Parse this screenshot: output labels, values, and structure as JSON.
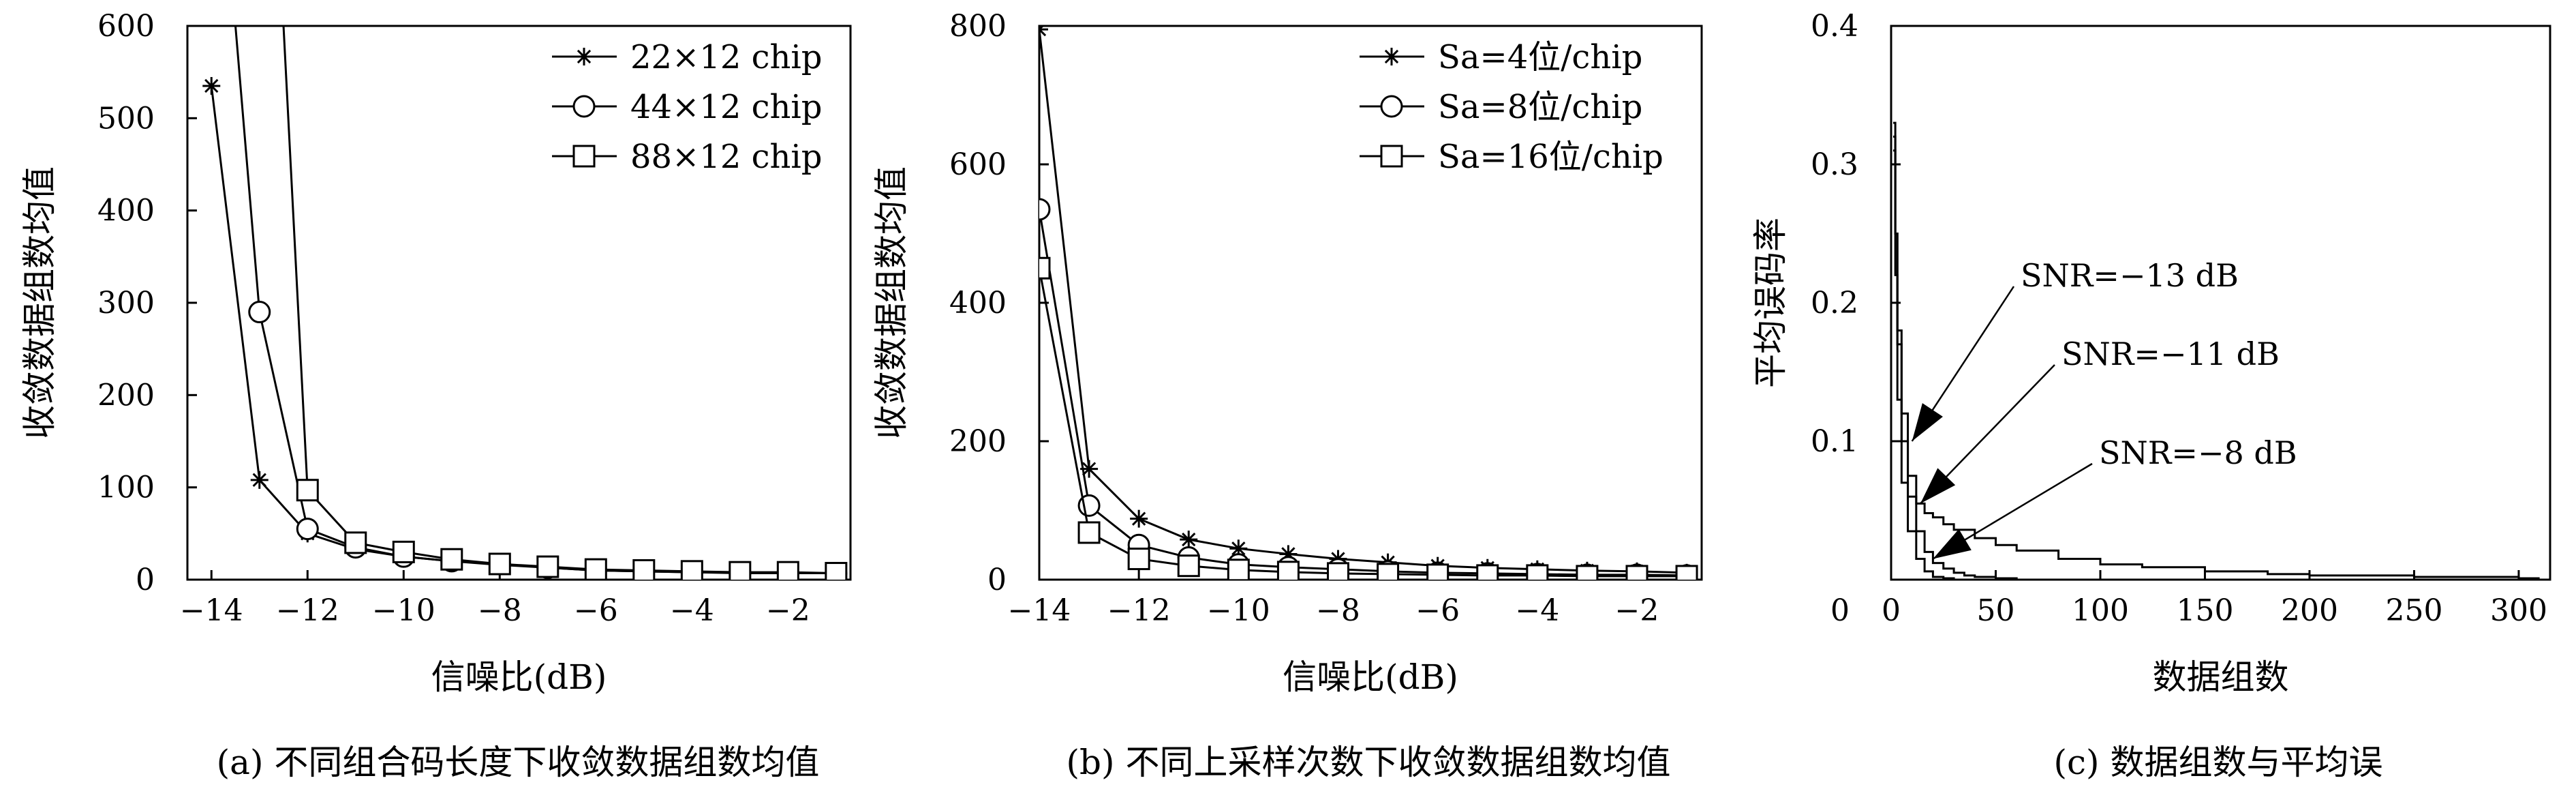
{
  "charts": [
    {
      "id": "a",
      "type": "line",
      "caption": "(a) 不同组合码长度下收敛数据组数均值",
      "xlabel": "信噪比(dB)",
      "ylabel": "收敛数据组数均值",
      "xlim": [
        -14.5,
        -0.7
      ],
      "ylim": [
        0,
        600
      ],
      "xticks": [
        -14,
        -12,
        -10,
        -8,
        -6,
        -4,
        -2
      ],
      "xtick_labels": [
        "−14",
        "−12",
        "−10",
        "−8",
        "−6",
        "−4",
        "−2"
      ],
      "yticks": [
        0,
        100,
        200,
        300,
        400,
        500,
        600
      ],
      "ytick_labels": [
        "0",
        "100",
        "200",
        "300",
        "400",
        "500",
        "600"
      ],
      "legend_position": "top-right",
      "series": [
        {
          "name": "22×12 chip",
          "marker": "star",
          "x": [
            -14,
            -13,
            -12,
            -11,
            -10,
            -9,
            -8,
            -7,
            -6,
            -5,
            -4,
            -3,
            -2,
            -1
          ],
          "y": [
            535,
            108,
            50,
            33,
            25,
            20,
            16,
            13,
            10,
            9,
            8,
            8,
            7,
            7
          ]
        },
        {
          "name": "44×12 chip",
          "marker": "circle",
          "x": [
            -13.5,
            -13,
            -12,
            -11,
            -10,
            -9,
            -8,
            -7,
            -6,
            -5,
            -4,
            -3,
            -2,
            -1
          ],
          "y": [
            600,
            290,
            55,
            35,
            25,
            20,
            17,
            13,
            10,
            9,
            8,
            7,
            7,
            7
          ]
        },
        {
          "name": "88×12 chip",
          "marker": "square",
          "x": [
            -12.5,
            -12,
            -11,
            -10,
            -9,
            -8,
            -7,
            -6,
            -5,
            -4,
            -3,
            -2,
            -1
          ],
          "y": [
            600,
            97,
            40,
            30,
            22,
            17,
            14,
            11,
            10,
            9,
            8,
            8,
            7
          ]
        }
      ]
    },
    {
      "id": "b",
      "type": "line",
      "caption": "(b) 不同上采样次数下收敛数据组数均值",
      "xlabel": "信噪比(dB)",
      "ylabel": "收敛数据组数均值",
      "xlim": [
        -14,
        -0.7
      ],
      "ylim": [
        0,
        800
      ],
      "xticks": [
        -14,
        -12,
        -10,
        -8,
        -6,
        -4,
        -2
      ],
      "xtick_labels": [
        "−14",
        "−12",
        "−10",
        "−8",
        "−6",
        "−4",
        "−2"
      ],
      "yticks": [
        0,
        200,
        400,
        600,
        800
      ],
      "ytick_labels": [
        "0",
        "200",
        "400",
        "600",
        "800"
      ],
      "legend_position": "top-right",
      "series": [
        {
          "name": "Sa=4位/chip",
          "marker": "star",
          "x": [
            -14,
            -13,
            -12,
            -11,
            -10,
            -9,
            -8,
            -7,
            -6,
            -5,
            -4,
            -3,
            -2,
            -1
          ],
          "y": [
            795,
            160,
            88,
            58,
            45,
            37,
            30,
            25,
            20,
            17,
            15,
            13,
            12,
            10
          ]
        },
        {
          "name": "Sa=8位/chip",
          "marker": "circle",
          "x": [
            -14,
            -13,
            -12,
            -11,
            -10,
            -9,
            -8,
            -7,
            -6,
            -5,
            -4,
            -3,
            -2,
            -1
          ],
          "y": [
            535,
            107,
            50,
            32,
            22,
            18,
            15,
            12,
            10,
            9,
            8,
            7,
            7,
            6
          ]
        },
        {
          "name": "Sa=16位/chip",
          "marker": "square",
          "x": [
            -14,
            -13,
            -12,
            -11,
            -10,
            -9,
            -8,
            -7,
            -6,
            -5,
            -4,
            -3,
            -2,
            -1
          ],
          "y": [
            450,
            68,
            30,
            20,
            14,
            11,
            9,
            8,
            7,
            6,
            6,
            5,
            5,
            5
          ]
        }
      ]
    },
    {
      "id": "c",
      "type": "line",
      "caption": "(c) 数据组数与平均误",
      "xlabel": "数据组数",
      "ylabel": "平均误码率",
      "xlim": [
        0,
        315
      ],
      "ylim": [
        0,
        0.4
      ],
      "xticks": [
        0,
        50,
        100,
        150,
        200,
        250,
        300
      ],
      "xtick_labels": [
        "0",
        "50",
        "100",
        "150",
        "200",
        "250",
        "300"
      ],
      "yticks": [
        0.1,
        0.2,
        0.3,
        0.4
      ],
      "ytick_labels": [
        "0.1",
        "0.2",
        "0.3",
        "0.4"
      ],
      "series": [
        {
          "name": "SNR=−13 dB",
          "x": [
            1,
            2,
            3,
            5,
            8,
            12,
            16,
            20,
            25,
            30
          ],
          "y": [
            0.33,
            0.22,
            0.13,
            0.07,
            0.035,
            0.015,
            0.006,
            0.002,
            0.001,
            0.0
          ]
        },
        {
          "name": "SNR=−11 dB",
          "x": [
            1,
            2,
            3,
            5,
            8,
            12,
            16,
            20,
            25,
            30,
            35,
            40,
            50,
            60
          ],
          "y": [
            0.32,
            0.25,
            0.17,
            0.1,
            0.06,
            0.035,
            0.02,
            0.012,
            0.008,
            0.005,
            0.003,
            0.002,
            0.001,
            0.0
          ]
        },
        {
          "name": "SNR=−8 dB",
          "x": [
            1,
            2,
            3,
            5,
            8,
            12,
            16,
            20,
            25,
            30,
            40,
            50,
            60,
            80,
            100,
            120,
            150,
            180,
            200,
            250,
            300,
            310
          ],
          "y": [
            0.31,
            0.25,
            0.18,
            0.12,
            0.075,
            0.055,
            0.048,
            0.045,
            0.04,
            0.036,
            0.03,
            0.025,
            0.021,
            0.015,
            0.011,
            0.009,
            0.006,
            0.004,
            0.003,
            0.002,
            0.001,
            0.001
          ]
        }
      ],
      "annotations": [
        {
          "text": "SNR=−13 dB",
          "target_x": 10,
          "target_y": 0.1
        },
        {
          "text": "SNR=−11 dB",
          "target_x": 14,
          "target_y": 0.055
        },
        {
          "text": "SNR=−8 dB",
          "target_x": 20,
          "target_y": 0.015
        }
      ]
    }
  ]
}
